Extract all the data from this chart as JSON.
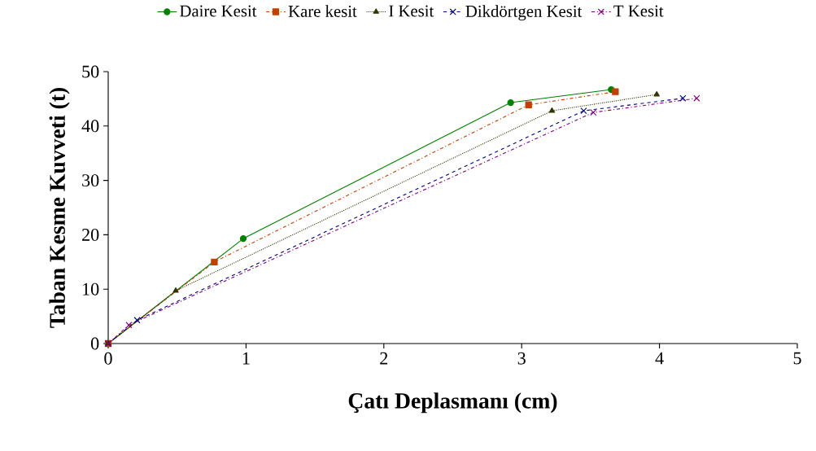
{
  "chart_data": {
    "type": "line",
    "xlabel": "Çatı Deplasmanı (cm)",
    "ylabel": "Taban Kesme Kuvveti (t)",
    "xlim": [
      0,
      5
    ],
    "ylim": [
      0,
      50
    ],
    "xticks": [
      0,
      1,
      2,
      3,
      4,
      5
    ],
    "yticks": [
      0,
      10,
      20,
      30,
      40,
      50
    ],
    "grid": false,
    "legend": "top",
    "series": [
      {
        "name": "Daire Kesit",
        "color": "#008000",
        "marker": "circle",
        "line_style": "solid",
        "x": [
          0,
          0.98,
          2.92,
          3.65
        ],
        "values": [
          0,
          19.3,
          44.3,
          46.7
        ]
      },
      {
        "name": "Kare kesit",
        "color": "#c04000",
        "marker": "square",
        "line_style": "dashdot",
        "x": [
          0,
          0.77,
          3.05,
          3.68
        ],
        "values": [
          0,
          15.0,
          43.9,
          46.3
        ]
      },
      {
        "name": "I Kesit",
        "color": "#333300",
        "marker": "triangle",
        "line_style": "dotted",
        "x": [
          0,
          0.49,
          3.22,
          3.98
        ],
        "values": [
          0,
          9.7,
          42.8,
          45.8
        ]
      },
      {
        "name": "Dikdörtgen Kesit",
        "color": "#000080",
        "marker": "cross",
        "line_style": "dashed",
        "x": [
          0,
          0.21,
          3.45,
          4.17
        ],
        "values": [
          0,
          4.3,
          42.8,
          45.1
        ]
      },
      {
        "name": "T Kesit",
        "color": "#800080",
        "marker": "cross",
        "line_style": "dashdot",
        "x": [
          0,
          0.15,
          3.52,
          4.27
        ],
        "values": [
          0,
          3.4,
          42.5,
          45.1
        ]
      }
    ]
  }
}
